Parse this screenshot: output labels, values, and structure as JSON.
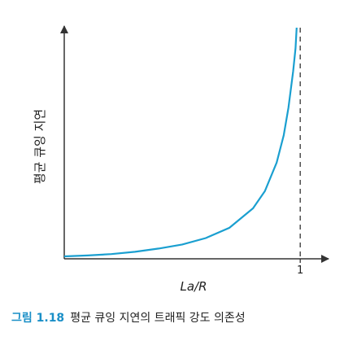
{
  "chart_data": {
    "type": "line",
    "xlabel": "La/R",
    "ylabel": "평균 큐잉 지연",
    "x_ticks": [
      {
        "value": 1,
        "label": "1"
      }
    ],
    "xlim": [
      0,
      1.12
    ],
    "ylim": [
      0,
      1
    ],
    "asymptote": {
      "x": 1,
      "style": "dashed"
    },
    "series": [
      {
        "color": "#1a9fd0",
        "x": [
          0.0,
          0.1,
          0.2,
          0.3,
          0.4,
          0.5,
          0.6,
          0.7,
          0.8,
          0.85,
          0.9,
          0.93,
          0.95,
          0.97,
          0.98,
          0.985
        ],
        "y": [
          0.0,
          0.004,
          0.01,
          0.02,
          0.034,
          0.052,
          0.08,
          0.125,
          0.21,
          0.285,
          0.41,
          0.53,
          0.65,
          0.81,
          0.91,
          1.0
        ]
      }
    ],
    "grid": false
  },
  "caption": {
    "number": "그림 1.18",
    "text": "평균 큐잉 지연의 트래픽 강도 의존성"
  },
  "colors": {
    "curve": "#1a9fd0",
    "axis": "#333333",
    "caption_number": "#1a8fc7"
  }
}
